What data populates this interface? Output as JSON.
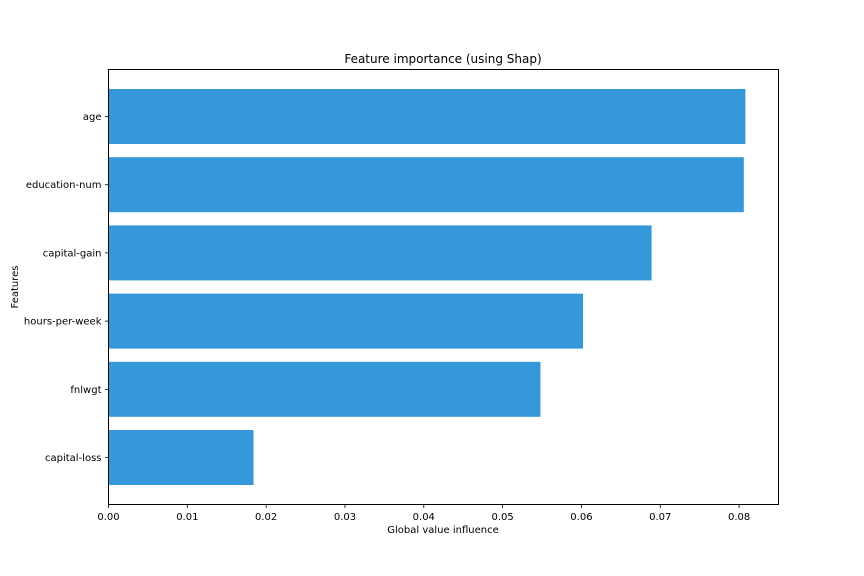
{
  "chart_data": {
    "type": "bar",
    "orientation": "horizontal",
    "title": "Feature importance (using Shap)",
    "xlabel": "Global value influence",
    "ylabel": "Features",
    "categories": [
      "age",
      "education-num",
      "capital-gain",
      "hours-per-week",
      "fnlwgt",
      "capital-loss"
    ],
    "values": [
      0.0808,
      0.0806,
      0.0689,
      0.0602,
      0.0548,
      0.0184
    ],
    "xlim": [
      0,
      0.085
    ],
    "xticks": [
      0,
      0.01,
      0.02,
      0.03,
      0.04,
      0.05,
      0.06,
      0.07,
      0.08
    ],
    "xtick_labels": [
      "0.00",
      "0.01",
      "0.02",
      "0.03",
      "0.04",
      "0.05",
      "0.06",
      "0.07",
      "0.08"
    ],
    "bar_color": "#3498db",
    "grid": false
  }
}
